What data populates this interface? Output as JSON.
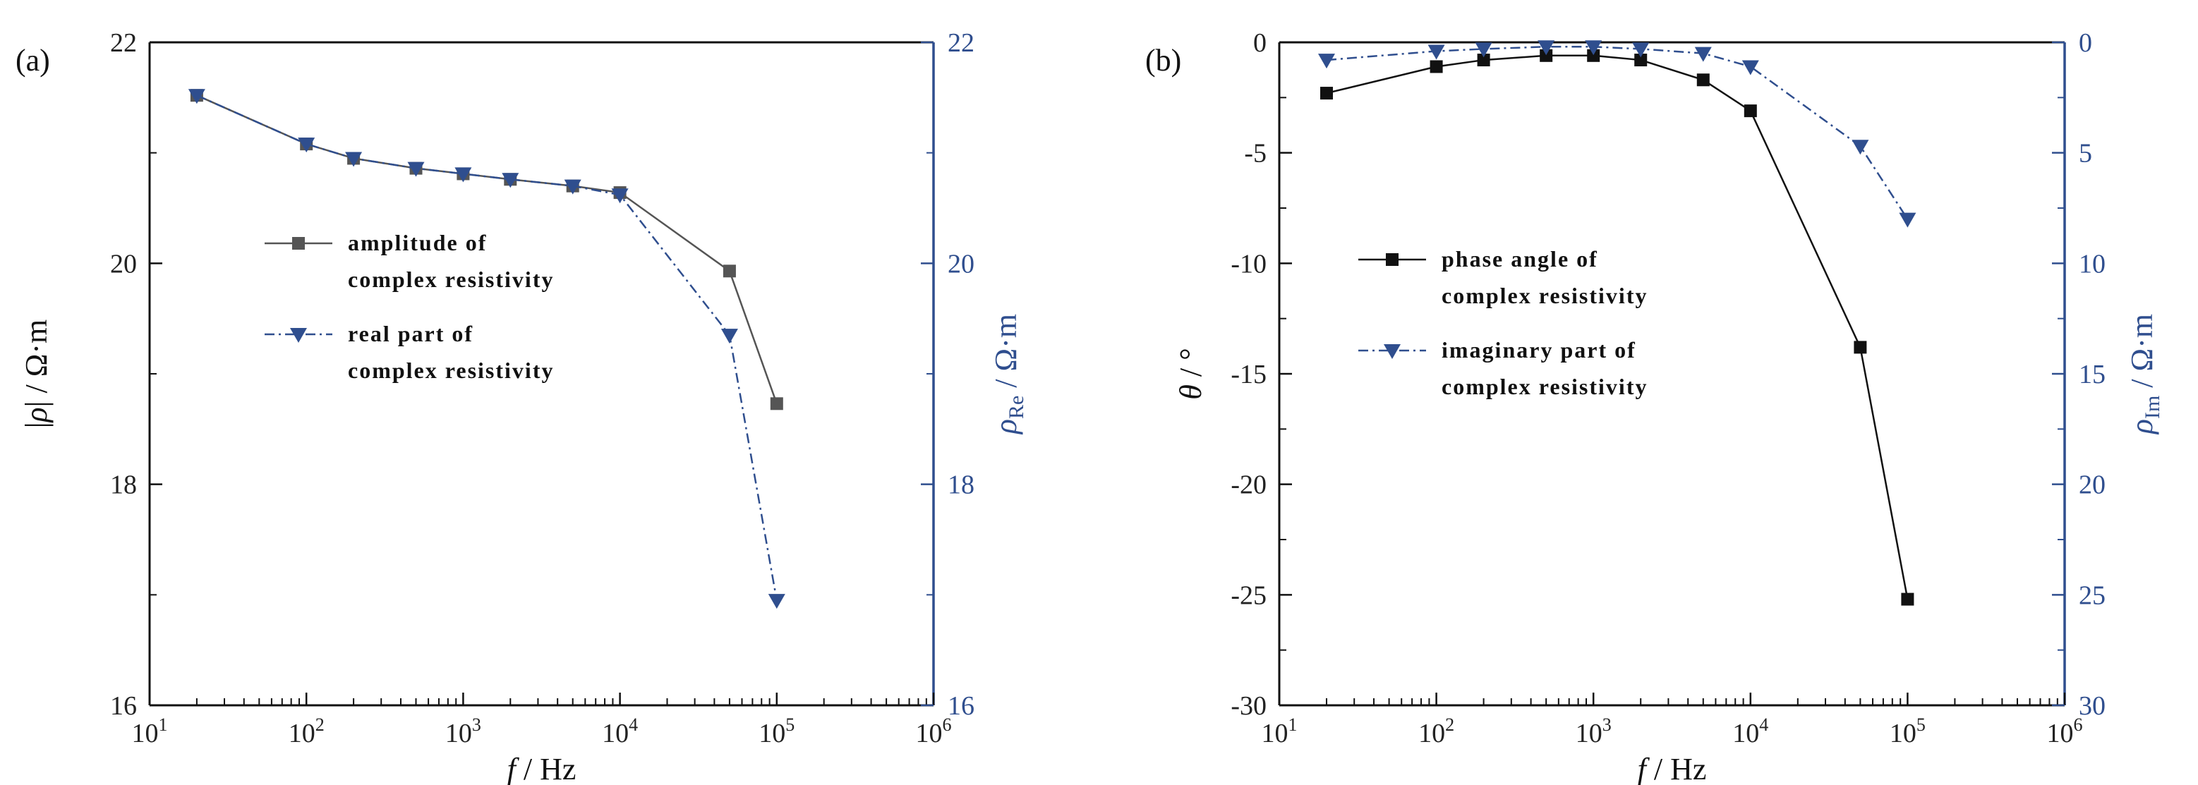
{
  "chart_data": [
    {
      "type": "line",
      "panel_label": "(a)",
      "x_scale": "log",
      "xlim": [
        10,
        1000000
      ],
      "x_tick_labels": [
        {
          "value": 10,
          "base": "10",
          "exp": "1"
        },
        {
          "value": 100,
          "base": "10",
          "exp": "2"
        },
        {
          "value": 1000,
          "base": "10",
          "exp": "3"
        },
        {
          "value": 10000,
          "base": "10",
          "exp": "4"
        },
        {
          "value": 100000,
          "base": "10",
          "exp": "5"
        },
        {
          "value": 1000000,
          "base": "10",
          "exp": "6"
        }
      ],
      "xlabel": {
        "var": "f",
        "rest": " / Hz"
      },
      "ylabel_left": {
        "pre": "|",
        "var": "ρ",
        "post": "| / Ω·m"
      },
      "ylabel_right": {
        "var": "ρ",
        "sub": "Re",
        "post": " / Ω·m"
      },
      "ylim_left": [
        16,
        22
      ],
      "ylim_right": [
        16,
        22
      ],
      "y_ticks_left": [
        "16",
        "18",
        "20",
        "22"
      ],
      "y_ticks_right": [
        "16",
        "18",
        "20",
        "22"
      ],
      "series": [
        {
          "legend_lines": [
            "amplitude of",
            "complex resistivity"
          ],
          "axis": "left",
          "color": "#555555",
          "marker": "square",
          "line_style": "solid",
          "x": [
            20,
            100,
            200,
            500,
            1000,
            2000,
            5000,
            10000,
            50000,
            100000
          ],
          "y": [
            21.52,
            21.08,
            20.95,
            20.86,
            20.81,
            20.76,
            20.7,
            20.64,
            19.93,
            18.73
          ]
        },
        {
          "legend_lines": [
            "real part of",
            "complex resistivity"
          ],
          "axis": "right",
          "color": "#2f4e8e",
          "marker": "triangle-down",
          "line_style": "dashdot",
          "x": [
            20,
            100,
            200,
            500,
            1000,
            2000,
            5000,
            10000,
            50000,
            100000
          ],
          "y": [
            21.52,
            21.08,
            20.95,
            20.86,
            20.81,
            20.76,
            20.7,
            20.62,
            19.35,
            16.95
          ]
        }
      ]
    },
    {
      "type": "line",
      "panel_label": "(b)",
      "x_scale": "log",
      "xlim": [
        10,
        1000000
      ],
      "x_tick_labels": [
        {
          "value": 10,
          "base": "10",
          "exp": "1"
        },
        {
          "value": 100,
          "base": "10",
          "exp": "2"
        },
        {
          "value": 1000,
          "base": "10",
          "exp": "3"
        },
        {
          "value": 10000,
          "base": "10",
          "exp": "4"
        },
        {
          "value": 100000,
          "base": "10",
          "exp": "5"
        },
        {
          "value": 1000000,
          "base": "10",
          "exp": "6"
        }
      ],
      "xlabel": {
        "var": "f",
        "rest": "  /  Hz"
      },
      "ylabel_left": {
        "var": "θ",
        "post": "  /  °"
      },
      "ylabel_right": {
        "var": "ρ",
        "sub": "Im",
        "post": " / Ω·m"
      },
      "ylim_left": [
        -30,
        0
      ],
      "ylim_right": [
        -30,
        0
      ],
      "y_ticks_left": [
        "-30",
        "-25",
        "-20",
        "-15",
        "-10",
        "-5",
        "0"
      ],
      "y_ticks_right": [
        "30",
        "25",
        "20",
        "15",
        "10",
        "5",
        "0"
      ],
      "series": [
        {
          "legend_lines": [
            "phase angle of",
            "complex resistivity"
          ],
          "axis": "left",
          "color": "#111111",
          "marker": "square",
          "line_style": "solid",
          "x": [
            20,
            100,
            200,
            500,
            1000,
            2000,
            5000,
            10000,
            50000,
            100000
          ],
          "y": [
            -2.3,
            -1.1,
            -0.8,
            -0.6,
            -0.6,
            -0.8,
            -1.7,
            -3.1,
            -13.8,
            -25.2
          ]
        },
        {
          "legend_lines": [
            "imaginary part of",
            "complex resistivity"
          ],
          "axis": "right",
          "color": "#2f4e8e",
          "marker": "triangle-down",
          "line_style": "dashdot",
          "x": [
            20,
            100,
            200,
            500,
            1000,
            2000,
            5000,
            10000,
            50000,
            100000
          ],
          "y": [
            -0.8,
            -0.4,
            -0.3,
            -0.2,
            -0.2,
            -0.3,
            -0.5,
            -1.1,
            -4.7,
            -8.0
          ]
        }
      ]
    }
  ]
}
